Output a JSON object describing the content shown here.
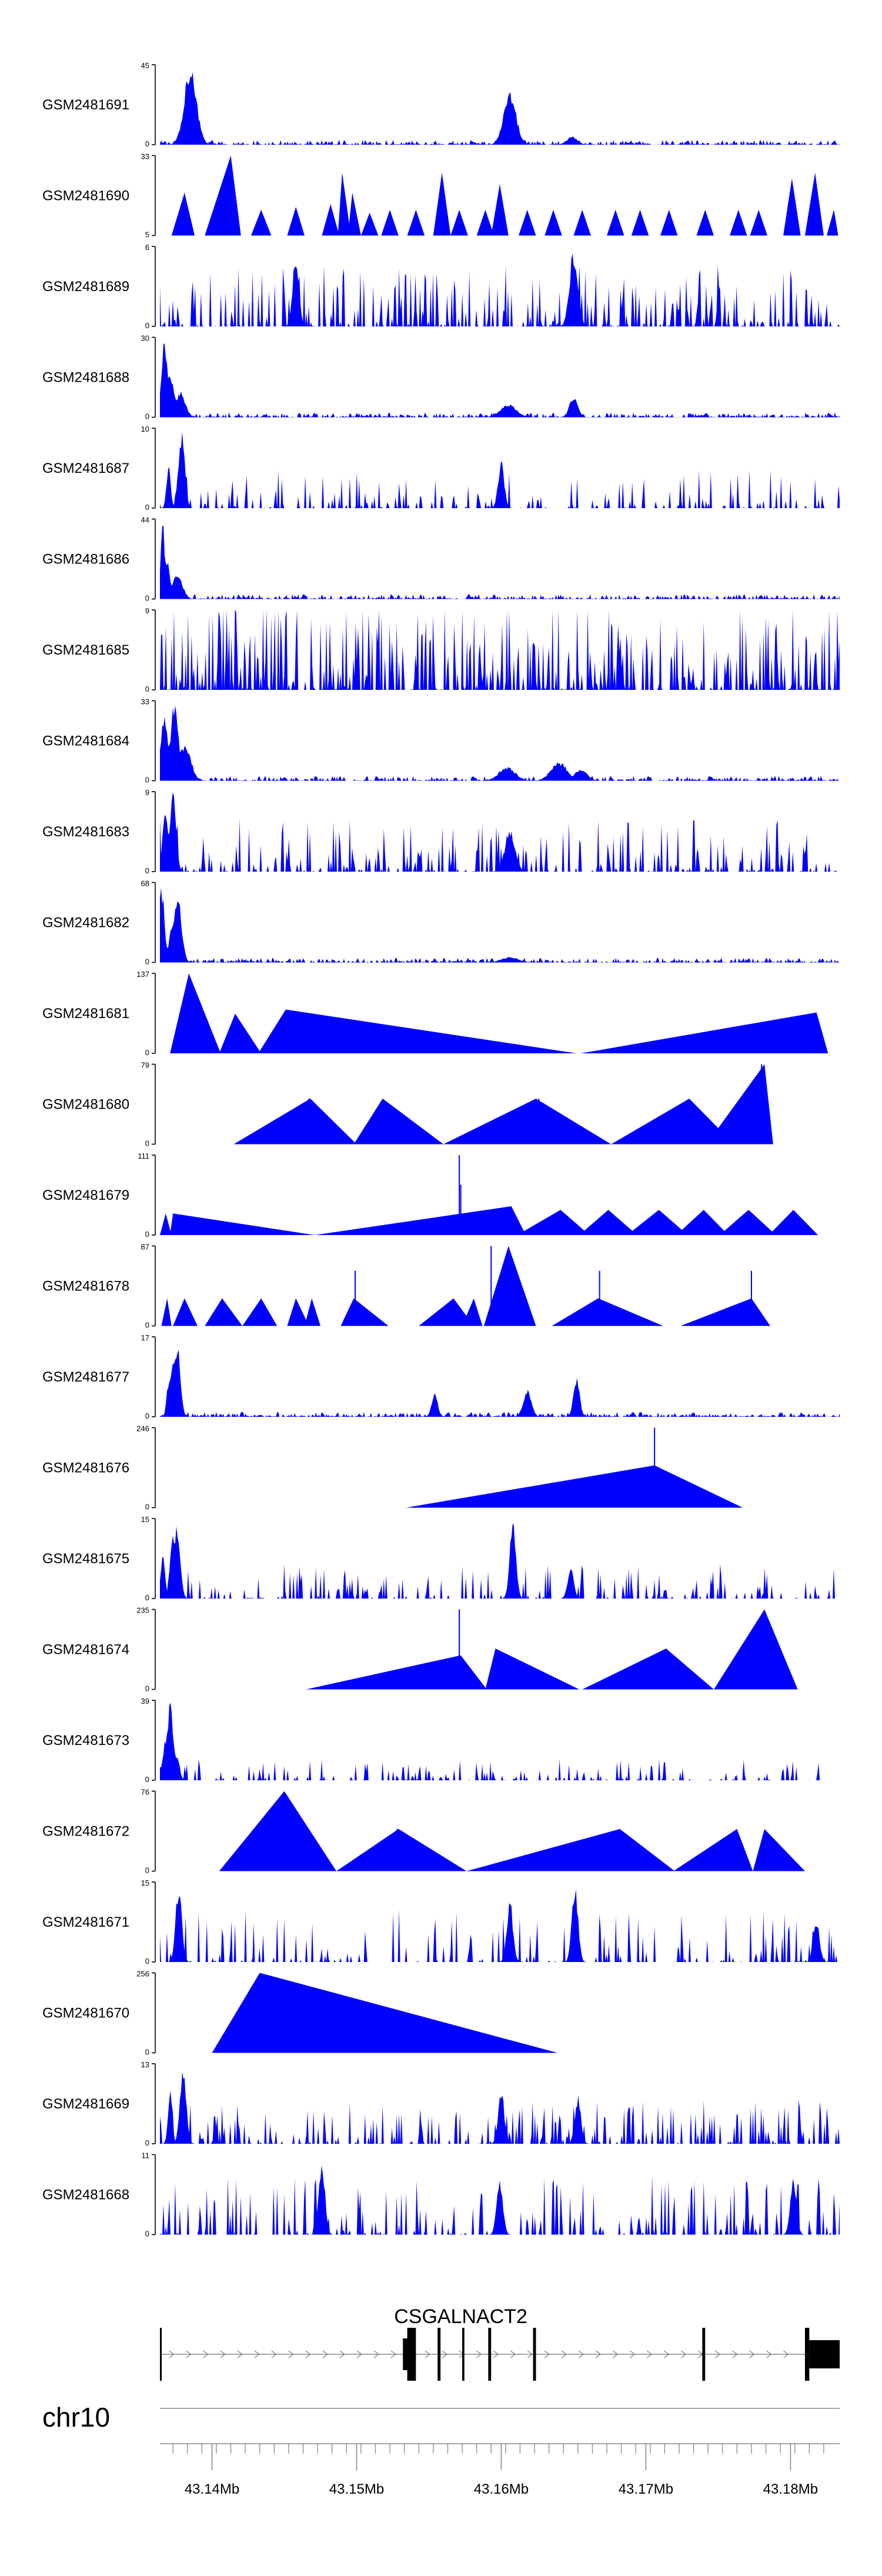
{
  "chart_data": {
    "type": "area",
    "title": "",
    "chromosome": "chr10",
    "xlim": [
      43.1364,
      43.1834
    ],
    "tracks": [
      {
        "name": "GSM2481691",
        "ymax": 45,
        "ymin": 0,
        "style": "dense",
        "peaks": [
          [
            43.1385,
            45,
            0.0006
          ],
          [
            43.1606,
            30,
            0.0006
          ],
          [
            43.1649,
            5,
            0.0005
          ]
        ]
      },
      {
        "name": "GSM2481690",
        "ymax": 33,
        "ymin": 5,
        "style": "tri",
        "tris": [
          [
            43.1372,
            43.1381,
            43.1388,
            20
          ],
          [
            43.1395,
            43.1413,
            43.142,
            33
          ],
          [
            43.1427,
            43.1434,
            43.1441,
            14
          ],
          [
            43.1452,
            43.1458,
            43.1464,
            15
          ],
          [
            43.1476,
            43.1482,
            43.1488,
            16
          ],
          [
            43.1487,
            43.149,
            43.1496,
            27
          ],
          [
            43.1494,
            43.1497,
            43.1503,
            20
          ],
          [
            43.1503,
            43.1509,
            43.1515,
            13
          ],
          [
            43.1517,
            43.1523,
            43.1529,
            14
          ],
          [
            43.1535,
            43.1541,
            43.1547,
            14
          ],
          [
            43.1553,
            43.1559,
            43.1565,
            27
          ],
          [
            43.1565,
            43.1571,
            43.1577,
            14
          ],
          [
            43.1583,
            43.1589,
            43.1595,
            14
          ],
          [
            43.1593,
            43.1599,
            43.1605,
            23
          ],
          [
            43.1612,
            43.1618,
            43.1624,
            14
          ],
          [
            43.163,
            43.1636,
            43.1642,
            14
          ],
          [
            43.165,
            43.1656,
            43.1662,
            14
          ],
          [
            43.1673,
            43.1679,
            43.1685,
            14
          ],
          [
            43.169,
            43.1696,
            43.1702,
            14
          ],
          [
            43.171,
            43.1716,
            43.1722,
            14
          ],
          [
            43.1735,
            43.1741,
            43.1747,
            14
          ],
          [
            43.1758,
            43.1764,
            43.177,
            14
          ],
          [
            43.1772,
            43.1778,
            43.1784,
            14
          ],
          [
            43.1795,
            43.1801,
            43.1807,
            25
          ],
          [
            43.181,
            43.1817,
            43.1823,
            27
          ],
          [
            43.1825,
            43.183,
            43.1833,
            14
          ]
        ]
      },
      {
        "name": "GSM2481689",
        "ymax": 6,
        "ymin": 0,
        "style": "spiky",
        "seed": 17,
        "density": 0.55,
        "base": 0.35,
        "peaks": [
          [
            43.165,
            6,
            0.0004
          ],
          [
            43.1458,
            6,
            0.0003
          ]
        ]
      },
      {
        "name": "GSM2481688",
        "ymax": 30,
        "ymin": 0,
        "style": "dense",
        "peaks": [
          [
            43.1367,
            30,
            0.0003
          ],
          [
            43.1371,
            18,
            0.0004
          ],
          [
            43.1378,
            10,
            0.0005
          ],
          [
            43.165,
            8,
            0.0004
          ],
          [
            43.1605,
            5,
            0.0008
          ]
        ]
      },
      {
        "name": "GSM2481687",
        "ymax": 10,
        "ymin": 0,
        "style": "spiky",
        "seed": 23,
        "density": 0.35,
        "base": 0.22,
        "peaks": [
          [
            43.1379,
            10,
            0.0003
          ],
          [
            43.16,
            6,
            0.0003
          ],
          [
            43.137,
            6,
            0.0002
          ]
        ]
      },
      {
        "name": "GSM2481686",
        "ymax": 44,
        "ymin": 0,
        "style": "dense",
        "peaks": [
          [
            43.1366,
            44,
            0.0002
          ],
          [
            43.1368,
            25,
            0.0004
          ],
          [
            43.1376,
            14,
            0.0005
          ]
        ]
      },
      {
        "name": "GSM2481685",
        "ymax": 9,
        "ymin": 0,
        "style": "spiky",
        "seed": 31,
        "density": 0.6,
        "base": 0.5,
        "peaks": []
      },
      {
        "name": "GSM2481684",
        "ymax": 33,
        "ymin": 0,
        "style": "dense",
        "peaks": [
          [
            43.1367,
            28,
            0.0004
          ],
          [
            43.1374,
            33,
            0.0004
          ],
          [
            43.1381,
            16,
            0.0006
          ],
          [
            43.1604,
            6,
            0.0008
          ],
          [
            43.164,
            8,
            0.0008
          ],
          [
            43.1655,
            5,
            0.0006
          ]
        ]
      },
      {
        "name": "GSM2481683",
        "ymax": 9,
        "ymin": 0,
        "style": "spiky",
        "seed": 41,
        "density": 0.45,
        "base": 0.3,
        "peaks": [
          [
            43.1373,
            9,
            0.0003
          ],
          [
            43.1368,
            7,
            0.0003
          ],
          [
            43.1606,
            5,
            0.0005
          ]
        ]
      },
      {
        "name": "GSM2481682",
        "ymax": 68,
        "ymin": 0,
        "style": "dense",
        "peaks": [
          [
            43.1365,
            68,
            0.0003
          ],
          [
            43.1376,
            60,
            0.0004
          ],
          [
            43.1372,
            30,
            0.0003
          ],
          [
            43.1606,
            5,
            0.0008
          ]
        ]
      },
      {
        "name": "GSM2481681",
        "ymax": 137,
        "ymin": 0,
        "style": "tri",
        "tris": [
          [
            43.1371,
            43.1384,
            43.1406,
            137
          ],
          [
            43.1405,
            43.1416,
            43.1434,
            68
          ],
          [
            43.1432,
            43.1451,
            43.1652,
            75
          ],
          [
            43.1655,
            43.1818,
            43.1826,
            70
          ]
        ],
        "spikes": [
          [
            43.1381,
            25
          ]
        ]
      },
      {
        "name": "GSM2481680",
        "ymax": 79,
        "ymin": 0,
        "style": "tri",
        "tris": [
          [
            43.1415,
            43.1468,
            43.15,
            45
          ],
          [
            43.1498,
            43.1518,
            43.156,
            45
          ],
          [
            43.156,
            43.1624,
            43.1676,
            45
          ],
          [
            43.1676,
            43.173,
            43.1761,
            45
          ],
          [
            43.1742,
            43.1782,
            43.1788,
            79
          ]
        ],
        "spikes": [
          [
            43.1467,
            45
          ],
          [
            43.1626,
            45
          ],
          [
            43.178,
            79
          ]
        ]
      },
      {
        "name": "GSM2481679",
        "ymax": 111,
        "ymin": 0,
        "style": "tri",
        "tris": [
          [
            43.1364,
            43.1368,
            43.1372,
            30
          ],
          [
            43.1371,
            43.1373,
            43.1471,
            30
          ],
          [
            43.1471,
            43.1607,
            43.1617,
            40
          ],
          [
            43.1611,
            43.1641,
            43.1661,
            35
          ],
          [
            43.1654,
            43.1674,
            43.1694,
            35
          ],
          [
            43.1687,
            43.1709,
            43.1729,
            35
          ],
          [
            43.1721,
            43.174,
            43.1757,
            35
          ],
          [
            43.1751,
            43.1771,
            43.179,
            35
          ],
          [
            43.1785,
            43.1802,
            43.1819,
            35
          ]
        ],
        "spikes": [
          [
            43.1571,
            111
          ],
          [
            43.1572,
            70
          ]
        ]
      },
      {
        "name": "GSM2481678",
        "ymax": 87,
        "ymin": 0,
        "style": "tri",
        "tris": [
          [
            43.1365,
            43.1369,
            43.1372,
            30
          ],
          [
            43.1373,
            43.1381,
            43.139,
            30
          ],
          [
            43.1395,
            43.1407,
            43.1421,
            30
          ],
          [
            43.1421,
            43.1434,
            43.1445,
            30
          ],
          [
            43.1452,
            43.1458,
            43.1467,
            30
          ],
          [
            43.1464,
            43.1469,
            43.1475,
            30
          ],
          [
            43.1489,
            43.1498,
            43.1522,
            30
          ],
          [
            43.1543,
            43.1567,
            43.1581,
            30
          ],
          [
            43.1573,
            43.1581,
            43.1587,
            30
          ],
          [
            43.1588,
            43.1605,
            43.1624,
            87
          ],
          [
            43.1635,
            43.1667,
            43.1712,
            30
          ],
          [
            43.1724,
            43.1773,
            43.1786,
            30
          ]
        ],
        "spikes": [
          [
            43.1499,
            60
          ],
          [
            43.1593,
            87
          ],
          [
            43.1668,
            60
          ],
          [
            43.1773,
            60
          ]
        ]
      },
      {
        "name": "GSM2481677",
        "ymax": 17,
        "ymin": 0,
        "style": "dense",
        "peaks": [
          [
            43.1376,
            17,
            0.0003
          ],
          [
            43.1373,
            14,
            0.0003
          ],
          [
            43.137,
            8,
            0.0002
          ],
          [
            43.1618,
            6,
            0.0004
          ],
          [
            43.1652,
            9,
            0.0003
          ],
          [
            43.1554,
            5,
            0.0003
          ]
        ]
      },
      {
        "name": "GSM2481676",
        "ymax": 246,
        "ymin": 0,
        "style": "tri",
        "tris": [
          [
            43.1534,
            43.1706,
            43.1767,
            130
          ]
        ],
        "spikes": [
          [
            43.1706,
            246
          ]
        ]
      },
      {
        "name": "GSM2481675",
        "ymax": 15,
        "ymin": 0,
        "style": "spiky",
        "seed": 53,
        "density": 0.35,
        "base": 0.2,
        "peaks": [
          [
            43.1376,
            15,
            0.0003
          ],
          [
            43.1373,
            12,
            0.0003
          ],
          [
            43.1366,
            10,
            0.0002
          ],
          [
            43.1608,
            15,
            0.0003
          ],
          [
            43.1648,
            6,
            0.0003
          ]
        ]
      },
      {
        "name": "GSM2481674",
        "ymax": 235,
        "ymin": 0,
        "style": "tri",
        "tris": [
          [
            43.1465,
            43.1572,
            43.159,
            100
          ],
          [
            43.1589,
            43.1596,
            43.1654,
            120
          ],
          [
            43.1656,
            43.1714,
            43.1747,
            120
          ],
          [
            43.1747,
            43.1782,
            43.1805,
            235
          ]
        ],
        "spikes": [
          [
            43.1571,
            235
          ]
        ]
      },
      {
        "name": "GSM2481673",
        "ymax": 39,
        "ymin": 0,
        "style": "spiky",
        "seed": 61,
        "density": 0.3,
        "base": 0.12,
        "decay": 43.182,
        "peaks": [
          [
            43.1371,
            39,
            0.0003
          ],
          [
            43.1368,
            22,
            0.0003
          ],
          [
            43.1375,
            14,
            0.0003
          ]
        ]
      },
      {
        "name": "GSM2481672",
        "ymax": 76,
        "ymin": 0,
        "style": "tri",
        "tris": [
          [
            43.1405,
            43.145,
            43.1486,
            76
          ],
          [
            43.1486,
            43.1529,
            43.1576,
            40
          ],
          [
            43.1576,
            43.1682,
            43.172,
            40
          ],
          [
            43.1719,
            43.1763,
            43.1774,
            40
          ],
          [
            43.1774,
            43.1782,
            43.181,
            40
          ]
        ],
        "spikes": [
          [
            43.1449,
            60
          ],
          [
            43.1528,
            40
          ]
        ]
      },
      {
        "name": "GSM2481671",
        "ymax": 15,
        "ymin": 0,
        "style": "spiky",
        "seed": 71,
        "density": 0.3,
        "base": 0.3,
        "peaks": [
          [
            43.1377,
            15,
            0.0003
          ],
          [
            43.1651,
            15,
            0.0003
          ],
          [
            43.1606,
            12,
            0.0003
          ],
          [
            43.1818,
            8,
            0.0003
          ]
        ]
      },
      {
        "name": "GSM2481670",
        "ymax": 256,
        "ymin": 0,
        "style": "tri",
        "tris": [
          [
            43.14,
            43.1433,
            43.1639,
            256
          ]
        ]
      },
      {
        "name": "GSM2481669",
        "ymax": 13,
        "ymin": 0,
        "style": "spiky",
        "seed": 83,
        "density": 0.45,
        "base": 0.25,
        "peaks": [
          [
            43.138,
            13,
            0.0003
          ],
          [
            43.1371,
            10,
            0.0002
          ],
          [
            43.16,
            9,
            0.0003
          ],
          [
            43.1653,
            8,
            0.0003
          ]
        ]
      },
      {
        "name": "GSM2481668",
        "ymax": 11,
        "ymin": 0,
        "style": "spiky",
        "seed": 97,
        "density": 0.35,
        "base": 0.35,
        "peaks": [
          [
            43.1476,
            11,
            0.0003
          ],
          [
            43.1599,
            8,
            0.0003
          ],
          [
            43.1802,
            8,
            0.0003
          ]
        ]
      }
    ],
    "gene": {
      "label": "CSGALNACT2",
      "start": 43.1364,
      "end": 43.1834,
      "exons": [
        [
          43.1364,
          43.13648
        ],
        [
          43.1532,
          43.1538
        ],
        [
          43.1535,
          43.1541
        ],
        [
          43.1556,
          43.1558
        ],
        [
          43.1573,
          43.15745
        ],
        [
          43.1591,
          43.1593
        ],
        [
          43.1622,
          43.1624
        ],
        [
          43.1739,
          43.1741
        ],
        [
          43.181,
          43.1813
        ],
        [
          43.1813,
          43.1834
        ]
      ]
    },
    "axis": {
      "ticks": [
        43.1373,
        43.1383,
        43.1393,
        43.1403,
        43.1413,
        43.1423,
        43.1433,
        43.1443,
        43.1453,
        43.1463,
        43.1473,
        43.1483,
        43.1493,
        43.1503,
        43.1513,
        43.1523,
        43.1533,
        43.1543,
        43.1553,
        43.1563,
        43.1573,
        43.1583,
        43.1593,
        43.1603,
        43.1613,
        43.1623,
        43.1633,
        43.1643,
        43.1653,
        43.1663,
        43.1673,
        43.1683,
        43.1693,
        43.1703,
        43.1713,
        43.1723,
        43.1733,
        43.1743,
        43.1753,
        43.1763,
        43.1773,
        43.1783,
        43.1793,
        43.1803,
        43.1813,
        43.1823
      ],
      "major_ticks": [
        43.14,
        43.15,
        43.16,
        43.17,
        43.18
      ],
      "labels": [
        "43.14Mb",
        "43.15Mb",
        "43.16Mb",
        "43.17Mb",
        "43.18Mb"
      ]
    },
    "colors": {
      "fill": "#0000ff",
      "axis": "#000000",
      "line": "#888888"
    }
  }
}
